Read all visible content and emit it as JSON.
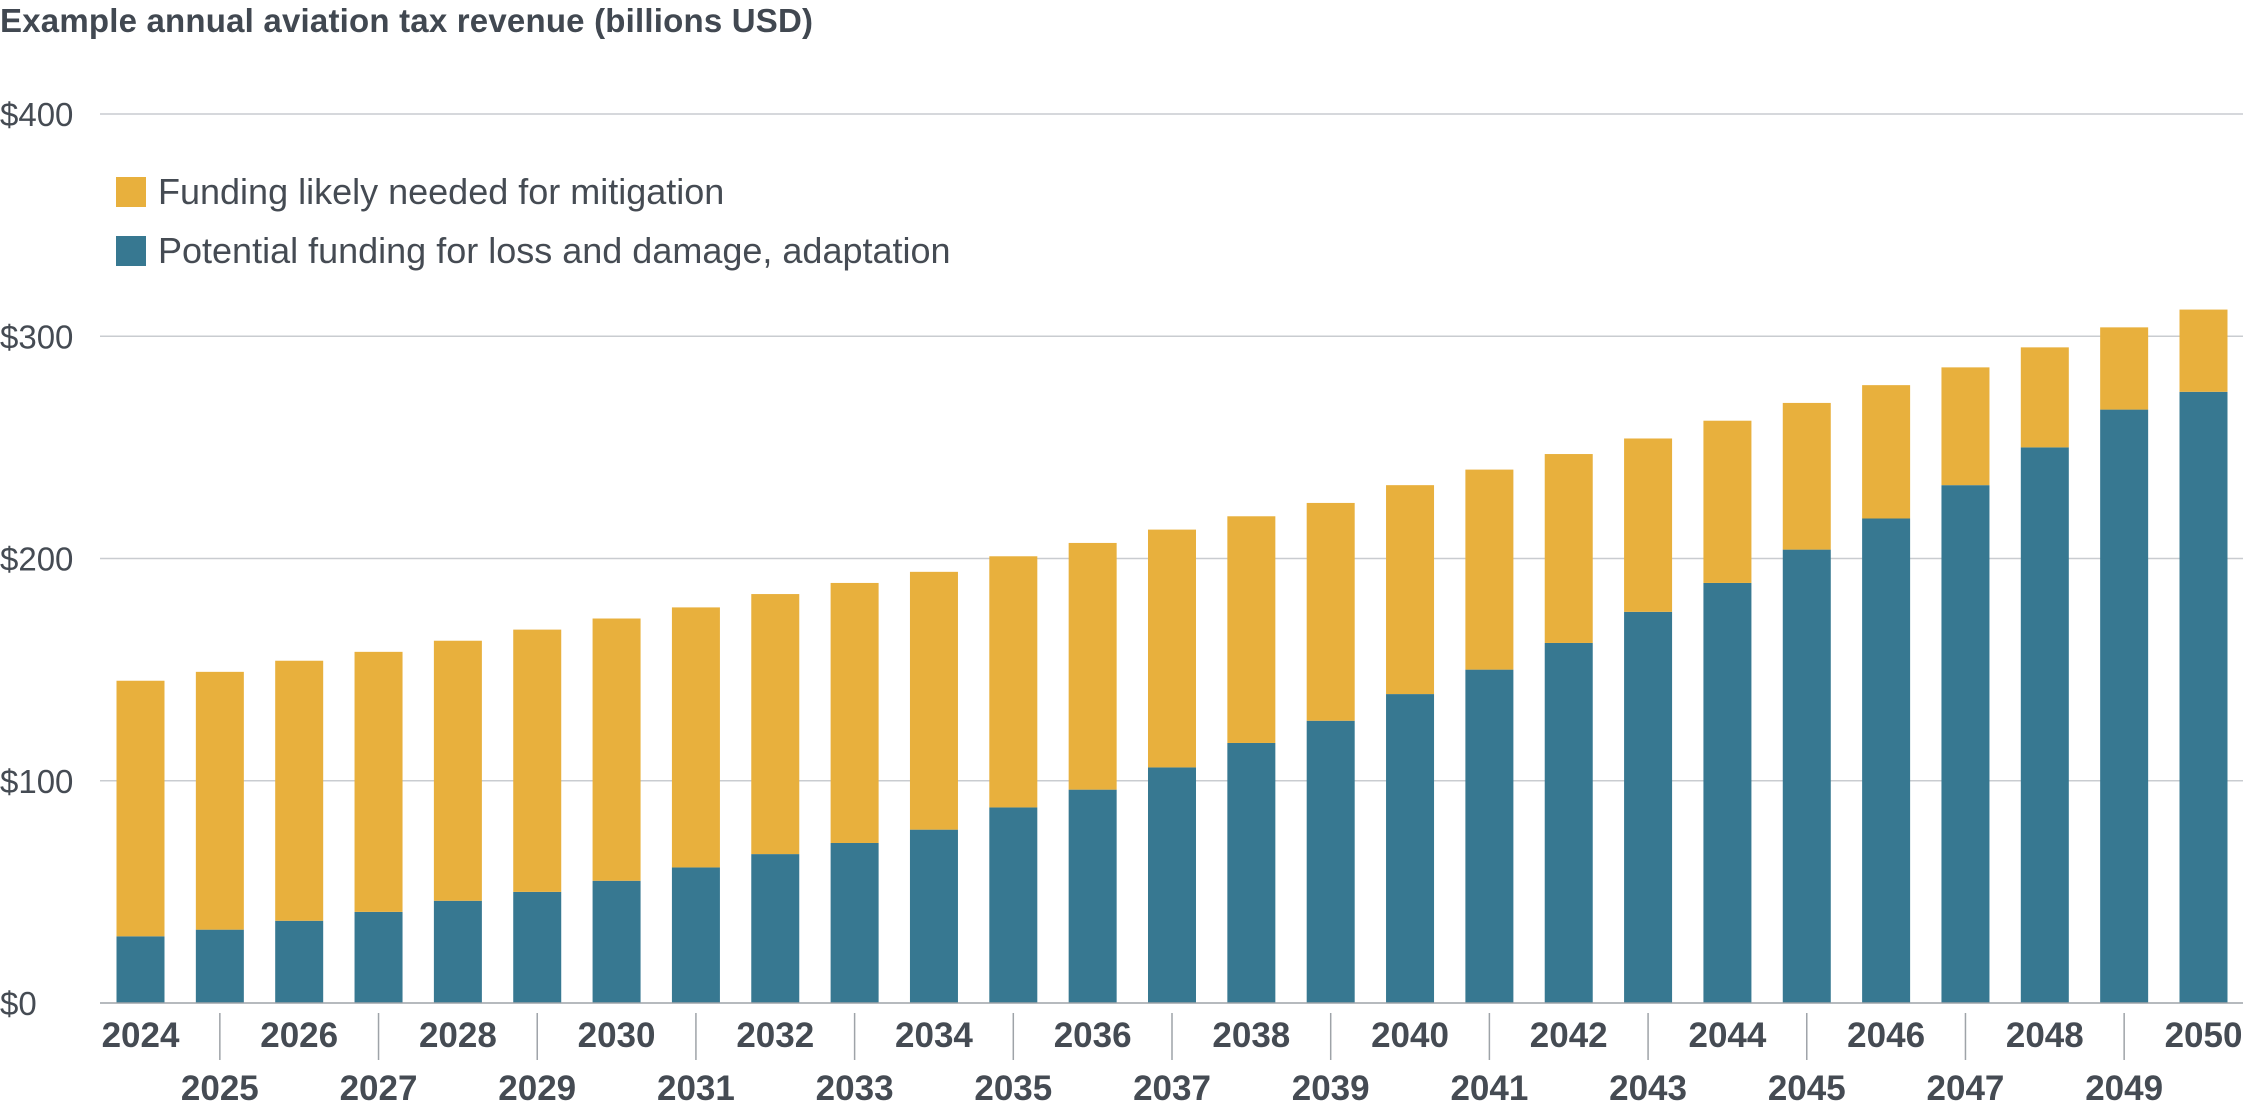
{
  "chart_data": {
    "type": "bar",
    "stacked": true,
    "title": "Example annual aviation tax revenue (billions USD)",
    "xlabel": "",
    "ylabel": "",
    "ylim": [
      0,
      400
    ],
    "yticks": [
      "$0",
      "$100",
      "$200",
      "$300",
      "$400"
    ],
    "ytick_values": [
      0,
      100,
      200,
      300,
      400
    ],
    "grid": true,
    "legend_position": "top-left",
    "categories": [
      "2024",
      "2025",
      "2026",
      "2027",
      "2028",
      "2029",
      "2030",
      "2031",
      "2032",
      "2033",
      "2034",
      "2035",
      "2036",
      "2037",
      "2038",
      "2039",
      "2040",
      "2041",
      "2042",
      "2043",
      "2044",
      "2045",
      "2046",
      "2047",
      "2048",
      "2049",
      "2050"
    ],
    "series": [
      {
        "name": "Potential funding for loss and damage, adaptation",
        "color": "#377891",
        "values": [
          30,
          33,
          37,
          41,
          46,
          50,
          55,
          61,
          67,
          72,
          78,
          88,
          96,
          106,
          117,
          127,
          139,
          150,
          162,
          176,
          189,
          204,
          218,
          233,
          250,
          267,
          275
        ]
      },
      {
        "name": "Funding likely needed for mitigation",
        "color": "#e8b03d",
        "values": [
          115,
          116,
          117,
          117,
          117,
          118,
          118,
          117,
          117,
          117,
          116,
          113,
          111,
          107,
          102,
          98,
          94,
          90,
          85,
          78,
          73,
          66,
          60,
          53,
          45,
          37,
          37
        ]
      }
    ]
  }
}
